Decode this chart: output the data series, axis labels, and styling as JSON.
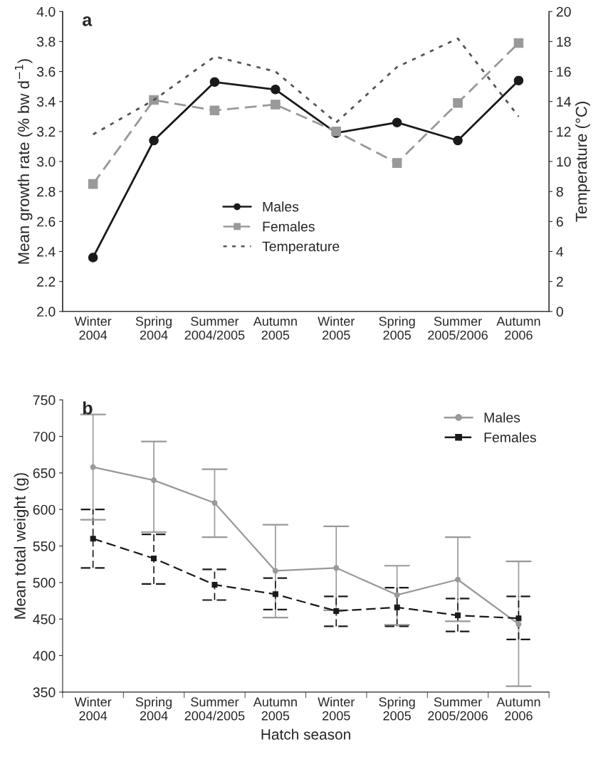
{
  "chart_data": [
    {
      "type": "line",
      "title": "a",
      "ylabel": "Mean growth rate (% bw d$^{−1}$)",
      "y2label": "Temperature (°C)",
      "categories": [
        "Winter\n2004",
        "Spring\n2004",
        "Summer\n2004/2005",
        "Autumn\n2005",
        "Winter\n2005",
        "Spring\n2005",
        "Summer\n2005/2006",
        "Autumn\n2006"
      ],
      "series": [
        {
          "name": "Males",
          "color": "#1a1a1a",
          "marker": "circle",
          "line_style": "solid",
          "values": [
            2.36,
            3.14,
            3.53,
            3.48,
            3.19,
            3.26,
            3.14,
            3.54
          ]
        },
        {
          "name": "Females",
          "color": "#999999",
          "marker": "square",
          "line_style": "dashed",
          "values": [
            2.85,
            3.41,
            3.34,
            3.38,
            3.2,
            2.99,
            3.39,
            3.79
          ]
        },
        {
          "name": "Temperature",
          "color": "#555555",
          "marker": "none",
          "line_style": "dotted",
          "axis": "y2",
          "values": [
            11.8,
            14.1,
            17.0,
            16.0,
            12.6,
            16.3,
            18.2,
            13.0
          ]
        }
      ],
      "ylim": [
        2.0,
        4.0
      ],
      "yticks": [
        {
          "value": 2.0,
          "label": "2.0"
        },
        2.2,
        2.4,
        2.6,
        2.8,
        {
          "value": 3.0,
          "label": "3.0"
        },
        3.2,
        3.4,
        3.6,
        3.8,
        {
          "value": 4.0,
          "label": "4.0"
        }
      ],
      "y2lim": [
        0,
        20
      ],
      "y2ticks": [
        0,
        2,
        4,
        6,
        8,
        10,
        12,
        14,
        16,
        18,
        20
      ],
      "legend": "bottom"
    },
    {
      "type": "line",
      "title": "b",
      "xlabel": "Hatch season",
      "ylabel": "Mean total weight (g)",
      "categories": [
        "Winter\n2004",
        "Spring\n2004",
        "Summer\n2004/2005",
        "Autumn\n2005",
        "Winter\n2005",
        "Spring\n2005",
        "Summer\n2005/2006",
        "Autumn\n2006"
      ],
      "series": [
        {
          "name": "Males",
          "color": "#999999",
          "marker": "circle",
          "line_style": "solid",
          "values": [
            658,
            640,
            609,
            516,
            520,
            483,
            504,
            443
          ],
          "errors": [
            [
              586,
              730
            ],
            [
              569,
              693
            ],
            [
              562,
              655
            ],
            [
              452,
              579
            ],
            [
              462,
              577
            ],
            [
              442,
              523
            ],
            [
              447,
              562
            ],
            [
              358,
              529
            ]
          ]
        },
        {
          "name": "Females",
          "color": "#1a1a1a",
          "marker": "square",
          "line_style": "dashed",
          "values": [
            560,
            533,
            497,
            484,
            461,
            466,
            455,
            451
          ],
          "errors": [
            [
              520,
              600
            ],
            [
              498,
              566
            ],
            [
              476,
              518
            ],
            [
              463,
              506
            ],
            [
              440,
              481
            ],
            [
              440,
              493
            ],
            [
              433,
              478
            ],
            [
              422,
              481
            ]
          ]
        }
      ],
      "ylim": [
        350,
        750
      ],
      "yticks": [
        350,
        400,
        450,
        500,
        550,
        600,
        650,
        700,
        750
      ],
      "legend": "top right"
    }
  ]
}
